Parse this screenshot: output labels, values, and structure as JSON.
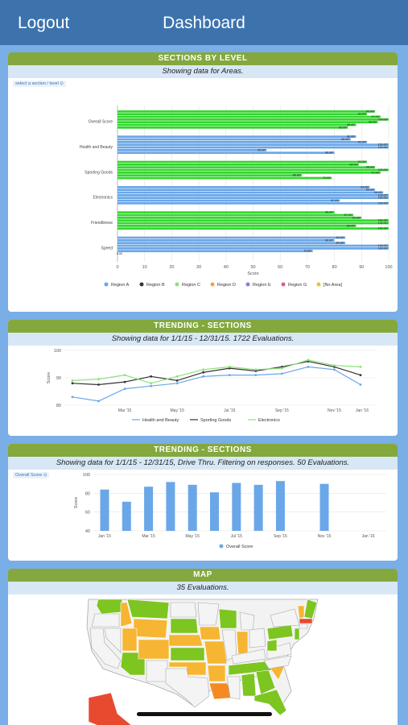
{
  "header": {
    "logout_label": "Logout",
    "title": "Dashboard"
  },
  "colors": {
    "green": "#33d62f",
    "blue": "#6aa7e8",
    "header_bar": "#3c73ad",
    "card_header": "#84a83e",
    "card_sub": "#d7e7f6"
  },
  "section1": {
    "header": "SECTIONS BY LEVEL",
    "subtitle": "Showing data for Areas.",
    "dropdown": "select a section / level ⊙",
    "chart_data": {
      "type": "bar",
      "orientation": "horizontal",
      "categories": [
        "Overall Score",
        "Health and Beauty",
        "Sporting Goods",
        "Electronics",
        "Friendliness",
        "Speed"
      ],
      "category_colors": [
        "green",
        "blue",
        "green",
        "blue",
        "green",
        "blue"
      ],
      "values": [
        [
          95,
          92,
          97,
          100,
          96,
          88,
          85
        ],
        [
          88,
          86,
          92,
          100,
          100,
          55,
          80
        ],
        [
          92,
          89,
          95,
          100,
          97,
          68,
          79
        ],
        [
          93,
          95,
          98,
          100,
          100,
          82,
          100
        ],
        [
          80,
          87,
          90,
          100,
          100,
          88,
          100
        ],
        [
          84,
          80,
          84,
          100,
          100,
          72,
          0
        ]
      ],
      "value_labels": [
        [
          "95.00*",
          "92.00*",
          "97.00*",
          "100.00*",
          "96.00*",
          "88.00*",
          "85.00*"
        ],
        [
          "88.00*",
          "86.00*",
          "92.00*",
          "100.00*",
          "100.00*",
          "55.00*",
          "80.00*"
        ],
        [
          "92.00*",
          "89.00*",
          "95.00*",
          "100.00*",
          "97.00*",
          "68.00*",
          "79.00*"
        ],
        [
          "93.00*",
          "95.00*",
          "98.00*",
          "100.00*",
          "100.00*",
          "82.00*",
          "100.00*"
        ],
        [
          "80.00*",
          "87.00*",
          "90.00*",
          "100.00*",
          "100.00*",
          "88.00*",
          "100.00*"
        ],
        [
          "84.00*",
          "80.00*",
          "84.00*",
          "100.00*",
          "100.00*",
          "72.00*",
          "0.00"
        ]
      ],
      "xticks": [
        "0",
        "10",
        "20",
        "30",
        "40",
        "50",
        "60",
        "70",
        "80",
        "90",
        "100"
      ],
      "xlim": [
        0,
        100
      ],
      "xlabel": "Score",
      "legend": [
        {
          "name": "Region A",
          "color": "#6aa7e8"
        },
        {
          "name": "Region B",
          "color": "#333333"
        },
        {
          "name": "Region C",
          "color": "#8be07a"
        },
        {
          "name": "Region D",
          "color": "#f0a050"
        },
        {
          "name": "Region E",
          "color": "#8a7ce0"
        },
        {
          "name": "Region G",
          "color": "#e85a7a"
        },
        {
          "name": "[No Area]",
          "color": "#e8c040"
        }
      ]
    }
  },
  "section2": {
    "header": "TRENDING - SECTIONS",
    "subtitle": "Showing data for 1/1/15 - 12/31/15. 1722 Evaluations.",
    "chart_data": {
      "type": "line",
      "x": [
        "Jan '15",
        "Feb '15",
        "Mar '15",
        "Apr '15",
        "May '15",
        "Jun '15",
        "Jul '15",
        "Aug '15",
        "Sep '15",
        "Oct '15",
        "Nov '15",
        "Dec '15"
      ],
      "xticks": [
        "Mar '15",
        "May '15",
        "Jul '15",
        "Sep '15",
        "Nov '15",
        "Jan '16"
      ],
      "yticks": [
        "80",
        "90",
        "100"
      ],
      "ylim": [
        80,
        100
      ],
      "ylabel": "Score",
      "series": [
        {
          "name": "Health and Beauty",
          "color": "#6aa7e8",
          "values": [
            83,
            81.5,
            86,
            87,
            88,
            90.5,
            91,
            91,
            91.5,
            94,
            93,
            87.5
          ]
        },
        {
          "name": "Sporting Goods",
          "color": "#333333",
          "values": [
            88,
            87.5,
            88.5,
            90.5,
            89,
            92,
            93.5,
            92.5,
            94,
            96,
            94,
            91
          ]
        },
        {
          "name": "Electronics",
          "color": "#8be07a",
          "values": [
            89,
            89.5,
            91,
            88,
            90.5,
            93,
            94,
            93,
            93.5,
            96.5,
            94.5,
            94
          ]
        }
      ]
    }
  },
  "section3": {
    "header": "TRENDING - SECTIONS",
    "subtitle": "Showing data for 1/1/15 - 12/31/15, Drive Thru. Filtering on responses. 50 Evaluations.",
    "dropdown": "Overall Score ⊙",
    "chart_data": {
      "type": "bar",
      "x": [
        "Jan '15",
        "Feb '15",
        "Mar '15",
        "Apr '15",
        "May '15",
        "Jun '15",
        "Jul '15",
        "Aug '15",
        "Sep '15",
        "Nov '15"
      ],
      "xticks": [
        "Jan '15",
        "Mar '15",
        "May '15",
        "Jul '15",
        "Sep '15",
        "Nov '15",
        "Jan '16"
      ],
      "yticks": [
        "40",
        "60",
        "80",
        "100"
      ],
      "ylim": [
        40,
        100
      ],
      "ylabel": "Score",
      "series": [
        {
          "name": "Overall Score",
          "color": "#6aa7e8",
          "values": [
            84,
            71,
            87,
            92,
            89,
            81,
            91,
            89,
            93,
            90
          ]
        }
      ]
    }
  },
  "section4": {
    "header": "MAP",
    "subtitle": "35 Evaluations."
  }
}
